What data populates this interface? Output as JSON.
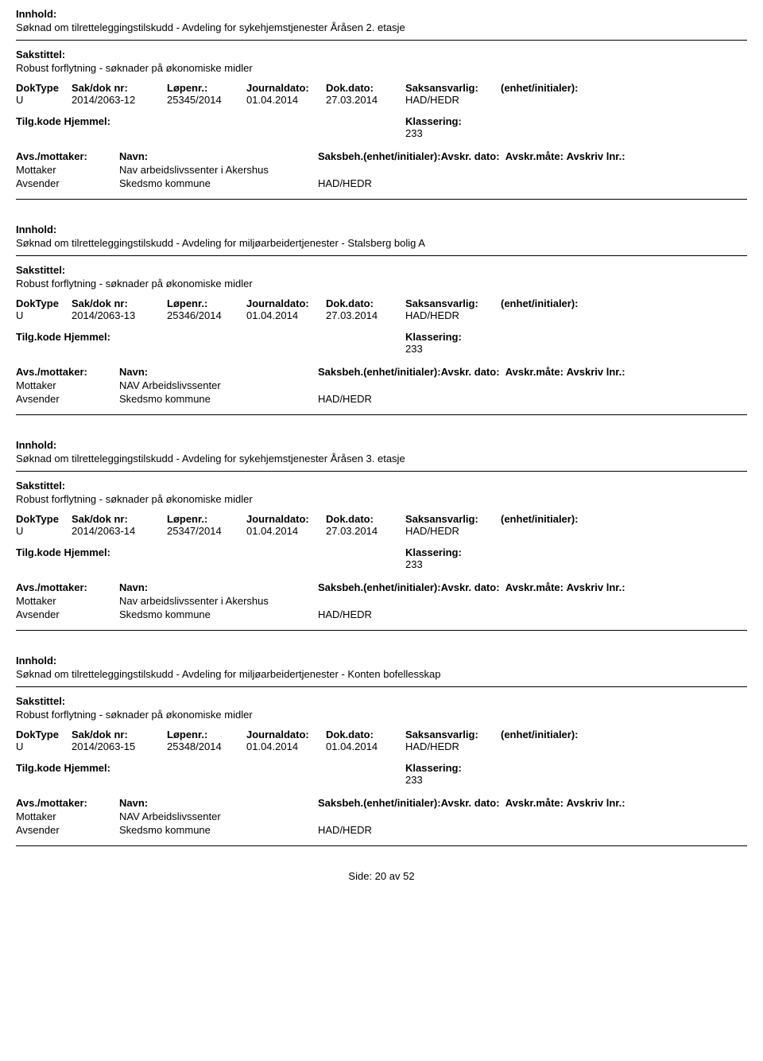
{
  "labels": {
    "innhold": "Innhold:",
    "sakstittel": "Sakstittel:",
    "doktype": "DokType",
    "saknr": "Sak/dok nr:",
    "lopenr": "Løpenr.:",
    "journaldato": "Journaldato:",
    "dokdato": "Dok.dato:",
    "saksansvarlig": "Saksansvarlig:",
    "enhet": "(enhet/initialer):",
    "tilgkode": "Tilg.kode",
    "hjemmel": "Hjemmel:",
    "klassering": "Klassering:",
    "avsmottaker": "Avs./mottaker:",
    "navn": "Navn:",
    "saksbeh": "Saksbeh.(enhet/initialer):",
    "avskrdato": "Avskr. dato:",
    "avskrmaate": "Avskr.måte:",
    "avskrivlnr": "Avskriv lnr.:",
    "mottaker": "Mottaker",
    "avsender": "Avsender"
  },
  "footer": {
    "prefix": "Side:",
    "page": "20",
    "sep": "av",
    "total": "52"
  },
  "records": [
    {
      "innhold": "Søknad om tilretteleggingstilskudd - Avdeling for sykehjemstjenester Åråsen 2. etasje",
      "sakstittel": "Robust forflytning - søknader på økonomiske midler",
      "doktype": "U",
      "saknr": "2014/2063-12",
      "lopenr": "25345/2014",
      "journaldato": "01.04.2014",
      "dokdato": "27.03.2014",
      "saksansvarlig": "HAD/HEDR",
      "klassering": "233",
      "mottaker": "Nav arbeidslivssenter i Akershus",
      "avsender": "Skedsmo kommune",
      "saksbeh_val": "HAD/HEDR"
    },
    {
      "innhold": "Søknad om tilretteleggingstilskudd - Avdeling for miljøarbeidertjenester - Stalsberg bolig A",
      "sakstittel": "Robust forflytning - søknader på økonomiske midler",
      "doktype": "U",
      "saknr": "2014/2063-13",
      "lopenr": "25346/2014",
      "journaldato": "01.04.2014",
      "dokdato": "27.03.2014",
      "saksansvarlig": "HAD/HEDR",
      "klassering": "233",
      "mottaker": "NAV Arbeidslivssenter",
      "avsender": "Skedsmo kommune",
      "saksbeh_val": "HAD/HEDR"
    },
    {
      "innhold": "Søknad om tilretteleggingstilskudd - Avdeling for sykehjemstjenester Åråsen 3. etasje",
      "sakstittel": "Robust forflytning - søknader på økonomiske midler",
      "doktype": "U",
      "saknr": "2014/2063-14",
      "lopenr": "25347/2014",
      "journaldato": "01.04.2014",
      "dokdato": "27.03.2014",
      "saksansvarlig": "HAD/HEDR",
      "klassering": "233",
      "mottaker": "Nav arbeidslivssenter i Akershus",
      "avsender": "Skedsmo kommune",
      "saksbeh_val": "HAD/HEDR"
    },
    {
      "innhold": "Søknad om tilretteleggingstilskudd - Avdeling for miljøarbeidertjenester - Konten bofellesskap",
      "sakstittel": "Robust forflytning - søknader på økonomiske midler",
      "doktype": "U",
      "saknr": "2014/2063-15",
      "lopenr": "25348/2014",
      "journaldato": "01.04.2014",
      "dokdato": "01.04.2014",
      "saksansvarlig": "HAD/HEDR",
      "klassering": "233",
      "mottaker": "NAV Arbeidslivssenter",
      "avsender": "Skedsmo kommune",
      "saksbeh_val": "HAD/HEDR"
    }
  ]
}
